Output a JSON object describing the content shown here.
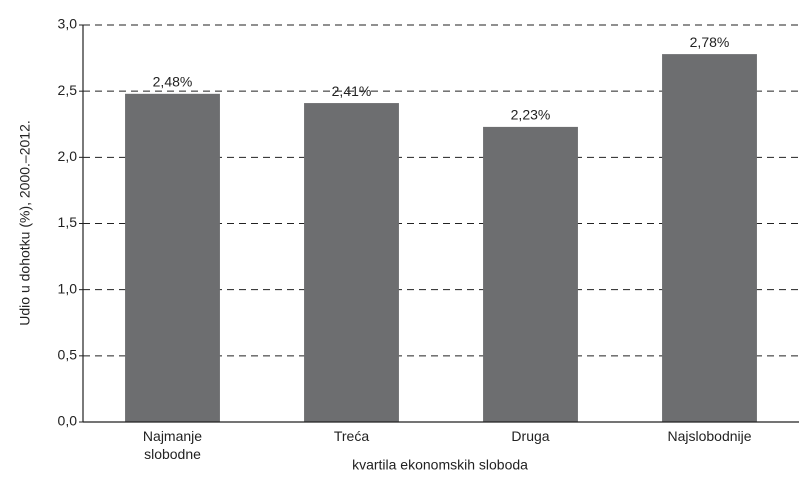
{
  "chart_data": {
    "type": "bar",
    "y_label": "Udio u dohotku (%), 2000.–2012.",
    "x_label": "kvartila ekonomskih sloboda",
    "categories": [
      "Najmanje\nslobodne",
      "Treća",
      "Druga",
      "Najslobodnije"
    ],
    "values": [
      2.48,
      2.41,
      2.23,
      2.78
    ],
    "value_labels": [
      "2,48%",
      "2,41%",
      "2,23%",
      "2,78%"
    ],
    "color": "#6d6e70",
    "ylim": [
      0,
      3
    ],
    "yticks": [
      {
        "value": 0,
        "label": "0,0"
      },
      {
        "value": 0.5,
        "label": "0,5"
      },
      {
        "value": 1,
        "label": "1,0"
      },
      {
        "value": 1.5,
        "label": "1,5"
      },
      {
        "value": 2,
        "label": "2,0"
      },
      {
        "value": 2.5,
        "label": "2,5"
      },
      {
        "value": 3,
        "label": "3,0"
      }
    ],
    "grid": true
  }
}
